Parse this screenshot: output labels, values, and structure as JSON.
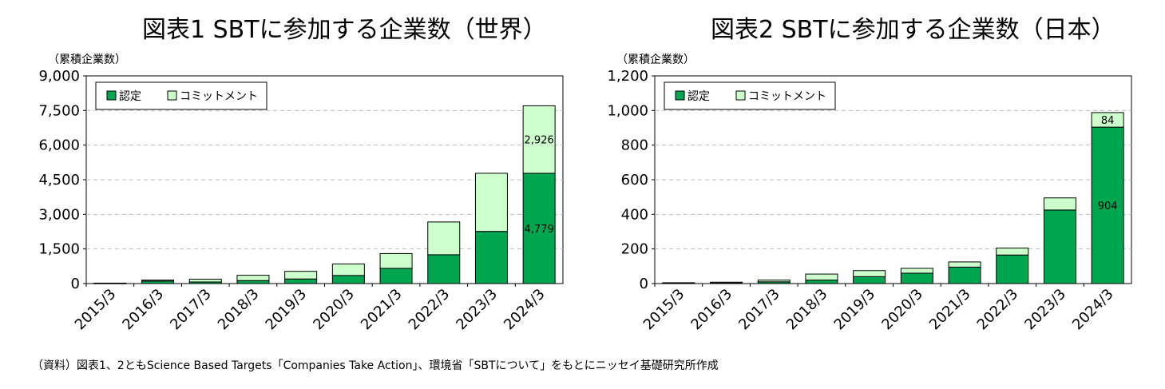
{
  "chart_data": [
    {
      "type": "bar",
      "stacked": true,
      "title": "図表1 SBTに参加する企業数（世界）",
      "ylabel": "（累積企業数）",
      "xlabel": "",
      "categories": [
        "2015/3",
        "2016/3",
        "2017/3",
        "2018/3",
        "2019/3",
        "2020/3",
        "2021/3",
        "2022/3",
        "2023/3",
        "2024/3"
      ],
      "series": [
        {
          "name": "認定",
          "color": "#00a64f",
          "values": [
            10,
            110,
            70,
            130,
            200,
            350,
            660,
            1250,
            2260,
            4779
          ]
        },
        {
          "name": "コミットメント",
          "color": "#ccffcc",
          "values": [
            10,
            40,
            120,
            230,
            330,
            500,
            640,
            1420,
            2520,
            2926
          ]
        }
      ],
      "data_labels": [
        {
          "series": 1,
          "index": 9,
          "text": "2,926"
        },
        {
          "series": 0,
          "index": 9,
          "text": "4,779"
        }
      ],
      "ylim": [
        0,
        9000
      ],
      "yticks": [
        0,
        1500,
        3000,
        4500,
        6000,
        7500,
        9000
      ],
      "ytick_labels": [
        "0",
        "1,500",
        "3,000",
        "4,500",
        "6,000",
        "7,500",
        "9,000"
      ],
      "grid": true,
      "legend_position": "top-left"
    },
    {
      "type": "bar",
      "stacked": true,
      "title": "図表2 SBTに参加する企業数（日本）",
      "ylabel": "（累積企業数）",
      "xlabel": "",
      "categories": [
        "2015/3",
        "2016/3",
        "2017/3",
        "2018/3",
        "2019/3",
        "2020/3",
        "2021/3",
        "2022/3",
        "2023/3",
        "2024/3"
      ],
      "series": [
        {
          "name": "認定",
          "color": "#00a64f",
          "values": [
            2,
            3,
            10,
            20,
            40,
            60,
            95,
            165,
            425,
            904
          ]
        },
        {
          "name": "コミットメント",
          "color": "#ccffcc",
          "values": [
            3,
            5,
            10,
            35,
            35,
            28,
            30,
            40,
            70,
            84
          ]
        }
      ],
      "data_labels": [
        {
          "series": 1,
          "index": 9,
          "text": "84"
        },
        {
          "series": 0,
          "index": 9,
          "text": "904"
        }
      ],
      "ylim": [
        0,
        1200
      ],
      "yticks": [
        0,
        200,
        400,
        600,
        800,
        1000,
        1200
      ],
      "ytick_labels": [
        "0",
        "200",
        "400",
        "600",
        "800",
        "1,000",
        "1,200"
      ],
      "grid": true,
      "legend_position": "top-left"
    }
  ],
  "footnote": "（資料）図表1、2ともScience Based Targets「Companies Take Action」、環境省「SBTについて」をもとにニッセイ基礎研究所作成"
}
